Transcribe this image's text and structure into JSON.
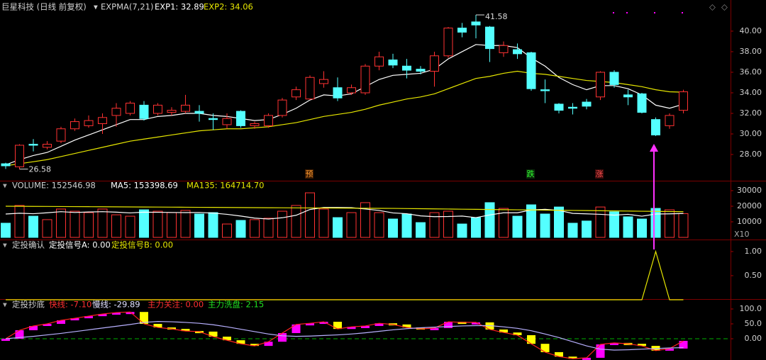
{
  "chart_data": [
    {
      "type": "candlestick",
      "title": "巨星科技 (日线 前复权)",
      "indicator": "EXPMA(7,21)",
      "up_color": "#ff3232",
      "down_color": "#54ffff",
      "open": [
        27.1,
        26.8,
        29.0,
        28.7,
        29.3,
        30.5,
        30.8,
        31.0,
        31.8,
        32.0,
        32.8,
        32.0,
        32.1,
        32.2,
        32.2,
        31.5,
        30.9,
        32.2,
        30.8,
        30.8,
        31.8,
        33.6,
        33.4,
        34.9,
        34.5,
        34.0,
        34.0,
        36.6,
        37.2,
        36.6,
        36.3,
        36.1,
        37.6,
        40.3,
        40.9,
        40.4,
        37.9,
        38.2,
        37.9,
        34.3,
        32.9,
        32.6,
        33.1,
        33.6,
        36.0,
        33.8,
        33.9,
        31.4,
        30.8,
        32.3
      ],
      "high": [
        27.2,
        29.0,
        29.5,
        29.3,
        30.7,
        31.5,
        31.8,
        32.0,
        33.0,
        33.2,
        33.2,
        33.0,
        32.6,
        33.8,
        32.8,
        32.0,
        32.0,
        32.3,
        31.2,
        32.0,
        33.5,
        34.6,
        35.7,
        36.1,
        35.5,
        34.8,
        36.8,
        38.0,
        37.8,
        37.3,
        36.6,
        38.0,
        40.4,
        40.8,
        41.58,
        40.5,
        39.0,
        38.8,
        38.0,
        35.3,
        33.0,
        33.0,
        33.4,
        36.1,
        36.2,
        34.3,
        34.0,
        31.6,
        32.0,
        34.3
      ],
      "low": [
        26.6,
        26.58,
        28.3,
        28.5,
        29.1,
        30.3,
        30.6,
        30.0,
        30.7,
        31.8,
        31.3,
        31.8,
        31.8,
        32.0,
        31.2,
        30.4,
        30.5,
        30.6,
        30.5,
        30.6,
        31.6,
        33.3,
        33.3,
        34.5,
        33.2,
        33.8,
        33.8,
        36.2,
        36.4,
        35.4,
        35.8,
        34.6,
        37.4,
        39.4,
        39.3,
        37.0,
        37.5,
        37.3,
        34.2,
        33.0,
        32.0,
        31.9,
        32.4,
        33.3,
        34.5,
        32.8,
        32.0,
        29.8,
        30.5,
        32.0
      ],
      "close": [
        26.9,
        28.9,
        28.9,
        29.0,
        30.5,
        31.2,
        31.3,
        31.6,
        32.5,
        33.0,
        31.5,
        32.8,
        32.3,
        32.8,
        32.0,
        31.4,
        31.5,
        30.8,
        31.0,
        31.8,
        33.3,
        34.3,
        35.5,
        35.3,
        33.5,
        34.5,
        36.6,
        37.5,
        36.7,
        36.2,
        36.1,
        37.6,
        40.3,
        39.9,
        40.6,
        38.3,
        38.6,
        37.8,
        34.4,
        34.2,
        32.3,
        32.5,
        32.7,
        36.0,
        34.8,
        33.6,
        32.1,
        29.9,
        31.8,
        34.1
      ],
      "series": [
        {
          "name": "EXP1: 32.89",
          "color": "#ffffff",
          "values": [
            27.0,
            27.5,
            27.9,
            28.2,
            28.8,
            29.4,
            29.9,
            30.4,
            30.9,
            31.4,
            31.4,
            31.7,
            31.8,
            32.0,
            32.0,
            31.8,
            31.7,
            31.5,
            31.3,
            31.4,
            31.9,
            32.5,
            33.3,
            33.8,
            33.7,
            33.9,
            34.6,
            35.3,
            35.7,
            35.8,
            35.9,
            36.3,
            37.3,
            38.0,
            38.7,
            38.6,
            38.6,
            38.4,
            37.4,
            36.6,
            35.5,
            34.8,
            34.3,
            34.7,
            34.7,
            34.4,
            33.8,
            32.8,
            32.5,
            32.89
          ]
        },
        {
          "name": "EXP2: 34.06",
          "color": "#e6e600",
          "values": [
            26.9,
            27.1,
            27.3,
            27.5,
            27.8,
            28.1,
            28.4,
            28.7,
            29.0,
            29.3,
            29.5,
            29.7,
            29.9,
            30.1,
            30.3,
            30.4,
            30.5,
            30.5,
            30.6,
            30.7,
            30.9,
            31.1,
            31.4,
            31.7,
            31.9,
            32.1,
            32.4,
            32.8,
            33.1,
            33.4,
            33.6,
            33.9,
            34.4,
            34.9,
            35.4,
            35.6,
            35.9,
            36.1,
            35.9,
            35.8,
            35.6,
            35.4,
            35.2,
            35.1,
            35.0,
            34.8,
            34.6,
            34.3,
            34.1,
            34.06
          ]
        }
      ],
      "high_label": "41.58",
      "low_label": "26.58",
      "signals": [
        "预",
        "跌",
        "涨"
      ],
      "ylim": [
        25.45,
        43.03
      ],
      "yticks": [
        {
          "value": 28,
          "label": "28.00"
        },
        {
          "value": 30,
          "label": "30.00"
        },
        {
          "value": 32,
          "label": "32.00"
        },
        {
          "value": 34,
          "label": "34.00"
        },
        {
          "value": 36,
          "label": "36.00"
        },
        {
          "value": 38,
          "label": "38.00"
        },
        {
          "value": 40,
          "label": "40.00"
        }
      ]
    },
    {
      "type": "bar",
      "title": "VOLUME: 152546.98",
      "unit_label": "X10",
      "values": [
        9100,
        20500,
        13600,
        11400,
        18200,
        16800,
        15900,
        18200,
        14500,
        13600,
        17700,
        16800,
        15900,
        17300,
        15000,
        15900,
        8600,
        10900,
        11400,
        12300,
        16800,
        20500,
        28600,
        18200,
        12700,
        15900,
        22300,
        15900,
        11800,
        15000,
        9500,
        15900,
        16800,
        8600,
        12700,
        22300,
        18600,
        13600,
        20900,
        15000,
        19500,
        9100,
        10500,
        19500,
        16400,
        13200,
        11800,
        18600,
        17700,
        15254.7
      ],
      "series": [
        {
          "name": "MA5: 153398.69",
          "color": "#ffffff",
          "values": [
            15000,
            15500,
            15200,
            15800,
            16500,
            16000,
            16300,
            16500,
            16200,
            15700,
            16200,
            16100,
            16000,
            15900,
            16000,
            15600,
            14800,
            13700,
            12400,
            11800,
            12600,
            14200,
            17900,
            19200,
            19200,
            19100,
            18200,
            17300,
            15700,
            15200,
            13800,
            13300,
            13400,
            13700,
            12700,
            14400,
            15800,
            15800,
            17600,
            18000,
            17300,
            15400,
            15100,
            14800,
            14300,
            14800,
            13600,
            15000,
            15100,
            15339.869
          ]
        },
        {
          "name": "MA135: 164714.70",
          "color": "#e6e600",
          "values": [
            20000,
            19950,
            19900,
            19850,
            19800,
            19750,
            19700,
            19650,
            19600,
            19550,
            19500,
            19450,
            19400,
            19350,
            19300,
            19250,
            19200,
            19150,
            19100,
            19050,
            19000,
            18950,
            18900,
            18850,
            18800,
            18750,
            18700,
            18650,
            18600,
            18500,
            18400,
            18300,
            18200,
            18100,
            18000,
            17900,
            17800,
            17700,
            17600,
            17500,
            17400,
            17300,
            17200,
            17100,
            17000,
            16900,
            16800,
            16700,
            16600,
            16471.47
          ]
        }
      ],
      "ylim": [
        0,
        35000
      ],
      "yticks": [
        10000,
        20000,
        30000
      ]
    },
    {
      "type": "line",
      "title": "定投确认",
      "indicator_a": "定投信号A: 0.00",
      "series": [
        {
          "name": "定投信号B: 0.00",
          "color": "#e6e600",
          "values": [
            0,
            0,
            0,
            0,
            0,
            0,
            0,
            0,
            0,
            0,
            0,
            0,
            0,
            0,
            0,
            0,
            0,
            0,
            0,
            0,
            0,
            0,
            0,
            0,
            0,
            0,
            0,
            0,
            0,
            0,
            0,
            0,
            0,
            0,
            0,
            0,
            0,
            0,
            0,
            0,
            0,
            0,
            0,
            0,
            0,
            0,
            0,
            1,
            0,
            0
          ]
        }
      ],
      "ylim": [
        0,
        1.22
      ],
      "yticks": [
        {
          "value": 0.5,
          "label": "0.50"
        },
        {
          "value": 1,
          "label": "1.00"
        }
      ]
    },
    {
      "type": "line",
      "title": "定投抄底",
      "extra_labels": [
        "主力关注: 0.00",
        "主力洗盘: 2.15"
      ],
      "zero_line_color": "#00b000",
      "series": [
        {
          "name": "快线: -7.10",
          "color": "#ff2020",
          "style": "boxes",
          "up_color": "#ff00ff",
          "down_color": "#ffff00",
          "values": [
            0,
            28.6,
            42.9,
            50,
            62,
            69,
            76,
            83,
            88,
            90,
            50,
            38,
            33,
            26,
            24,
            7,
            -5,
            -17,
            -24,
            -10,
            19,
            48,
            52,
            57,
            33,
            40,
            43,
            52,
            48,
            38,
            33,
            36,
            57,
            55,
            55,
            31,
            21,
            12,
            -17,
            -45,
            -60,
            -67,
            -64,
            -19,
            -14,
            -17,
            -24,
            -40,
            -33,
            -7.1
          ]
        },
        {
          "name": "慢线: -29.89",
          "color": "#b8b0ff",
          "values": [
            0,
            4,
            8,
            13,
            18,
            24,
            30,
            36,
            42,
            48,
            55,
            58,
            57,
            55,
            52,
            47,
            40,
            32,
            24,
            16,
            10,
            8,
            9,
            11,
            13,
            16,
            20,
            25,
            30,
            34,
            37,
            39,
            41,
            43,
            44,
            44,
            40,
            35,
            27,
            16,
            4,
            -10,
            -24,
            -35,
            -38,
            -37,
            -35,
            -33,
            -31,
            -29.89
          ]
        }
      ],
      "ylim": [
        -71.4,
        128.6
      ],
      "yticks": [
        {
          "value": 0,
          "label": "0.00"
        },
        {
          "value": 50,
          "label": "50.0"
        },
        {
          "value": 100,
          "label": "100.0"
        }
      ]
    }
  ]
}
